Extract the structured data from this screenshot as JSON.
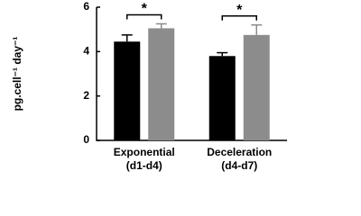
{
  "chart_data": {
    "type": "bar",
    "y_label": "pg.cell⁻¹ day⁻¹",
    "categories": [
      [
        "Exponential",
        "(d1-d4)"
      ],
      [
        "Deceleration",
        "(d4-d7)"
      ]
    ],
    "series": [
      {
        "color": "#000000",
        "values": [
          4.45,
          3.8
        ],
        "errors": [
          0.3,
          0.15
        ]
      },
      {
        "color": "#8c8c8c",
        "values": [
          5.05,
          4.75
        ],
        "errors": [
          0.2,
          0.45
        ]
      }
    ],
    "annotations": [
      "*",
      "*"
    ],
    "ylim": [
      0,
      6
    ],
    "yticks": [
      0,
      2,
      4,
      6
    ]
  }
}
